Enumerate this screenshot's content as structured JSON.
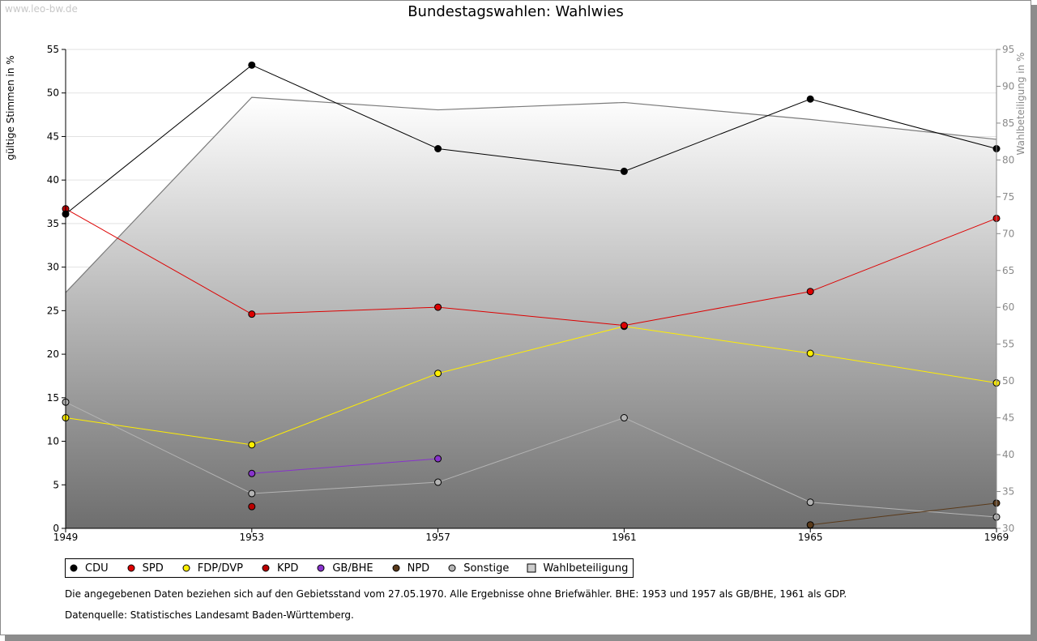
{
  "watermark": "www.leo-bw.de",
  "title": "Bundestagswahlen: Wahlwies",
  "left_axis_label": "gültige Stimmen in %",
  "right_axis_label": "Wahlbeteiligung in %",
  "footnote": "Die angegebenen Daten beziehen sich auf den Gebietsstand vom 27.05.1970. Alle Ergebnisse ohne Briefwähler. BHE: 1953 und 1957 als GB/BHE, 1961 als GDP.",
  "source": "Datenquelle: Statistisches Landesamt Baden-Württemberg.",
  "chart_data": {
    "type": "line",
    "title": "Bundestagswahlen: Wahlwies",
    "xlabel": "",
    "ylabel": "gültige Stimmen in %",
    "y2label": "Wahlbeteiligung in %",
    "x": [
      "1949",
      "1953",
      "1957",
      "1961",
      "1965",
      "1969"
    ],
    "ylim": [
      0,
      55
    ],
    "yticks": [
      0,
      5,
      10,
      15,
      20,
      25,
      30,
      35,
      40,
      45,
      50,
      55
    ],
    "y2lim": [
      30,
      95
    ],
    "y2ticks": [
      30,
      35,
      40,
      45,
      50,
      55,
      60,
      65,
      70,
      75,
      80,
      85,
      90,
      95
    ],
    "grid": true,
    "legend_position": "bottom",
    "series": [
      {
        "name": "CDU",
        "color": "#000000",
        "values": [
          36.1,
          53.2,
          43.6,
          41.0,
          49.3,
          43.6
        ]
      },
      {
        "name": "SPD",
        "color": "#dd0000",
        "values": [
          36.7,
          24.6,
          25.4,
          23.3,
          27.2,
          35.6
        ]
      },
      {
        "name": "FDP/DVP",
        "color": "#ffee00",
        "values": [
          12.7,
          9.6,
          17.8,
          23.2,
          20.1,
          16.7
        ]
      },
      {
        "name": "KPD",
        "color": "#bb0000",
        "values": [
          null,
          2.5,
          null,
          null,
          null,
          null
        ]
      },
      {
        "name": "GB/BHE",
        "color": "#8833cc",
        "values": [
          null,
          6.3,
          8.0,
          null,
          null,
          null
        ]
      },
      {
        "name": "NPD",
        "color": "#5a3a1a",
        "values": [
          null,
          null,
          null,
          null,
          0.4,
          2.9
        ]
      },
      {
        "name": "Sonstige",
        "color": "#b4b4b4",
        "values": [
          14.5,
          4.0,
          5.3,
          12.7,
          3.0,
          1.3
        ]
      }
    ],
    "area_series": {
      "name": "Wahlbeteiligung",
      "axis": "right",
      "values": [
        62.0,
        88.5,
        86.8,
        87.8,
        85.5,
        82.8
      ]
    },
    "first_point_colors": {
      "SPD": "#bb0000"
    }
  }
}
